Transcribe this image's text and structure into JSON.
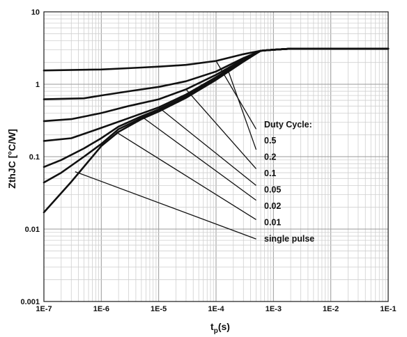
{
  "chart_data": {
    "type": "line",
    "x_scale": "log",
    "y_scale": "log",
    "xlim": [
      1e-07,
      0.1
    ],
    "ylim": [
      0.001,
      10
    ],
    "grid": true,
    "xlabel": "tp(s)",
    "xlabel_main": "t",
    "xlabel_sub": "p",
    "xlabel_suffix": "(s)",
    "ylabel": "ZthJC [°C/W]",
    "x_ticks": [
      {
        "value": 1e-07,
        "label": "1E-7"
      },
      {
        "value": 1e-06,
        "label": "1E-6"
      },
      {
        "value": 1e-05,
        "label": "1E-5"
      },
      {
        "value": 0.0001,
        "label": "1E-4"
      },
      {
        "value": 0.001,
        "label": "1E-3"
      },
      {
        "value": 0.01,
        "label": "1E-2"
      },
      {
        "value": 0.1,
        "label": "1E-1"
      }
    ],
    "y_ticks": [
      {
        "value": 0.001,
        "label": "0.001"
      },
      {
        "value": 0.01,
        "label": "0.01"
      },
      {
        "value": 0.1,
        "label": "0.1"
      },
      {
        "value": 1,
        "label": "1"
      },
      {
        "value": 10,
        "label": "10"
      }
    ],
    "legend_title": "Duty Cycle:",
    "series": [
      {
        "name": "0.5",
        "x": [
          1e-07,
          1e-06,
          5e-06,
          1e-05,
          3e-05,
          0.0001,
          0.0003,
          0.0006,
          0.001,
          0.002,
          0.01,
          0.1
        ],
        "y": [
          1.55,
          1.6,
          1.7,
          1.75,
          1.85,
          2.1,
          2.6,
          2.9,
          3.0,
          3.1,
          3.1,
          3.1
        ]
      },
      {
        "name": "0.2",
        "x": [
          1e-07,
          5e-07,
          1e-06,
          3e-06,
          1e-05,
          3e-05,
          0.0001,
          0.0003,
          0.0006,
          0.001,
          0.002,
          0.01,
          0.1
        ],
        "y": [
          0.62,
          0.64,
          0.7,
          0.8,
          0.92,
          1.1,
          1.5,
          2.3,
          2.9,
          3.0,
          3.1,
          3.1,
          3.1
        ]
      },
      {
        "name": "0.1",
        "x": [
          1e-07,
          3e-07,
          1e-06,
          3e-06,
          1e-05,
          3e-05,
          0.0001,
          0.0003,
          0.0006,
          0.001,
          0.002,
          0.01,
          0.1
        ],
        "y": [
          0.31,
          0.33,
          0.4,
          0.5,
          0.62,
          0.85,
          1.35,
          2.2,
          2.9,
          3.0,
          3.1,
          3.1,
          3.1
        ]
      },
      {
        "name": "0.05",
        "x": [
          1e-07,
          3e-07,
          1e-06,
          3e-06,
          1e-05,
          3e-05,
          0.0001,
          0.0003,
          0.0006,
          0.001,
          0.002,
          0.01,
          0.1
        ],
        "y": [
          0.165,
          0.18,
          0.25,
          0.34,
          0.48,
          0.72,
          1.25,
          2.15,
          2.9,
          3.0,
          3.1,
          3.1,
          3.1
        ]
      },
      {
        "name": "0.02",
        "x": [
          1e-07,
          2e-07,
          5e-07,
          1e-06,
          2e-06,
          5e-06,
          1e-05,
          3e-05,
          0.0001,
          0.0003,
          0.0006,
          0.001,
          0.002,
          0.01,
          0.1
        ],
        "y": [
          0.072,
          0.09,
          0.13,
          0.18,
          0.26,
          0.36,
          0.45,
          0.68,
          1.2,
          2.1,
          2.9,
          3.0,
          3.1,
          3.1,
          3.1
        ]
      },
      {
        "name": "0.01",
        "x": [
          1e-07,
          2e-07,
          5e-07,
          1e-06,
          2e-06,
          5e-06,
          1e-05,
          3e-05,
          0.0001,
          0.0003,
          0.0006,
          0.001,
          0.002,
          0.01,
          0.1
        ],
        "y": [
          0.044,
          0.06,
          0.1,
          0.15,
          0.24,
          0.34,
          0.43,
          0.66,
          1.18,
          2.08,
          2.9,
          3.0,
          3.1,
          3.1,
          3.1
        ]
      },
      {
        "name": "single pulse",
        "x": [
          1e-07,
          3e-07,
          1e-06,
          2e-06,
          5e-06,
          1e-05,
          3e-05,
          0.0001,
          0.0003,
          0.0006,
          0.001,
          0.002,
          0.01,
          0.1
        ],
        "y": [
          0.017,
          0.045,
          0.14,
          0.22,
          0.33,
          0.42,
          0.65,
          1.15,
          2.05,
          2.9,
          3.0,
          3.1,
          3.1,
          3.1
        ]
      }
    ],
    "leader_lines": [
      {
        "series": "0.5",
        "from": [
          0.0001,
          2.1
        ],
        "to": [
          0.0005,
          0.24
        ]
      },
      {
        "series": "0.2",
        "from": [
          0.00016,
          1.6
        ],
        "to": [
          0.0005,
          0.125
        ]
      },
      {
        "series": "0.1",
        "from": [
          3e-05,
          0.85
        ],
        "to": [
          0.0005,
          0.068
        ]
      },
      {
        "series": "0.05",
        "from": [
          1e-05,
          0.48
        ],
        "to": [
          0.0005,
          0.04
        ]
      },
      {
        "series": "0.02",
        "from": [
          5e-06,
          0.36
        ],
        "to": [
          0.0005,
          0.025
        ]
      },
      {
        "series": "0.01",
        "from": [
          1.8e-06,
          0.22
        ],
        "to": [
          0.0005,
          0.0135
        ]
      },
      {
        "series": "single pulse",
        "from": [
          3.5e-07,
          0.062
        ],
        "to": [
          0.0005,
          0.0073
        ]
      }
    ]
  }
}
